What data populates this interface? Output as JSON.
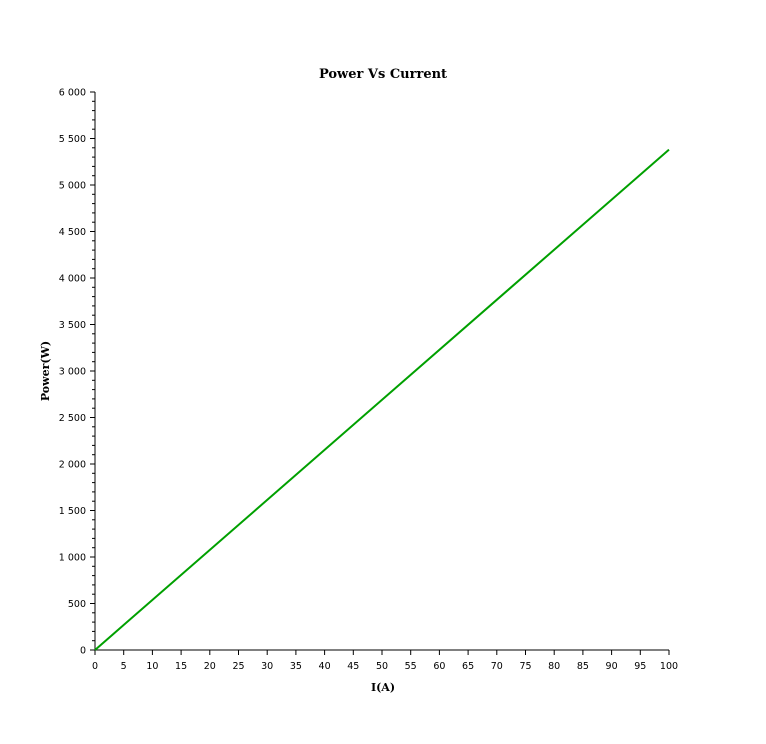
{
  "chart_data": {
    "type": "line",
    "title": "Power Vs Current",
    "xlabel": "I(A)",
    "ylabel": "Power(W)",
    "xlim": [
      0,
      100
    ],
    "ylim": [
      0,
      6000
    ],
    "x_ticks": [
      0,
      5,
      10,
      15,
      20,
      25,
      30,
      35,
      40,
      45,
      50,
      55,
      60,
      65,
      70,
      75,
      80,
      85,
      90,
      95,
      100
    ],
    "x_tick_labels": [
      "0",
      "5",
      "10",
      "15",
      "20",
      "25",
      "30",
      "35",
      "40",
      "45",
      "50",
      "55",
      "60",
      "65",
      "70",
      "75",
      "80",
      "85",
      "90",
      "95",
      "100"
    ],
    "y_ticks": [
      0,
      500,
      1000,
      1500,
      2000,
      2500,
      3000,
      3500,
      4000,
      4500,
      5000,
      5500,
      6000
    ],
    "y_tick_labels": [
      "0",
      "500",
      "1 000",
      "1 500",
      "2 000",
      "2 500",
      "3 000",
      "3 500",
      "4 000",
      "4 500",
      "5 000",
      "5 500",
      "6 000"
    ],
    "grid": false,
    "series": [
      {
        "color": "#00a000",
        "x": [
          0,
          100
        ],
        "y": [
          0,
          5380
        ]
      }
    ]
  }
}
